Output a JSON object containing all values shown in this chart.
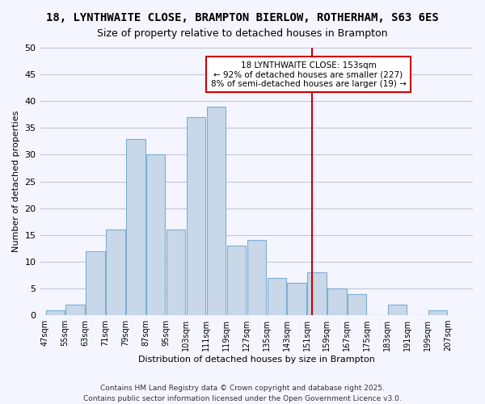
{
  "title1": "18, LYNTHWAITE CLOSE, BRAMPTON BIERLOW, ROTHERHAM, S63 6ES",
  "title2": "Size of property relative to detached houses in Brampton",
  "xlabel": "Distribution of detached houses by size in Brampton",
  "ylabel": "Number of detached properties",
  "bin_labels": [
    "47sqm",
    "55sqm",
    "63sqm",
    "71sqm",
    "79sqm",
    "87sqm",
    "95sqm",
    "103sqm",
    "111sqm",
    "119sqm",
    "127sqm",
    "135sqm",
    "143sqm",
    "151sqm",
    "159sqm",
    "167sqm",
    "175sqm",
    "183sqm",
    "191sqm",
    "199sqm",
    "207sqm"
  ],
  "bin_edges": [
    47,
    55,
    63,
    71,
    79,
    87,
    95,
    103,
    111,
    119,
    127,
    135,
    143,
    151,
    159,
    167,
    175,
    183,
    191,
    199,
    207
  ],
  "counts": [
    1,
    2,
    12,
    16,
    33,
    30,
    16,
    37,
    39,
    13,
    14,
    7,
    6,
    8,
    5,
    4,
    0,
    2,
    0,
    1
  ],
  "bar_color": "#c8d8e8",
  "bar_edge_color": "#7bafd4",
  "grid_color": "#c0c8d8",
  "vline_x": 153,
  "vline_color": "#cc0000",
  "annotation_text": "18 LYNTHWAITE CLOSE: 153sqm\n← 92% of detached houses are smaller (227)\n8% of semi-detached houses are larger (19) →",
  "annotation_box_color": "#ffffff",
  "annotation_box_edge": "#cc0000",
  "ylim": [
    0,
    50
  ],
  "yticks": [
    0,
    5,
    10,
    15,
    20,
    25,
    30,
    35,
    40,
    45,
    50
  ],
  "footnote1": "Contains HM Land Registry data © Crown copyright and database right 2025.",
  "footnote2": "Contains public sector information licensed under the Open Government Licence v3.0.",
  "bg_color": "#f5f5ff",
  "title1_fontsize": 10,
  "title2_fontsize": 9
}
